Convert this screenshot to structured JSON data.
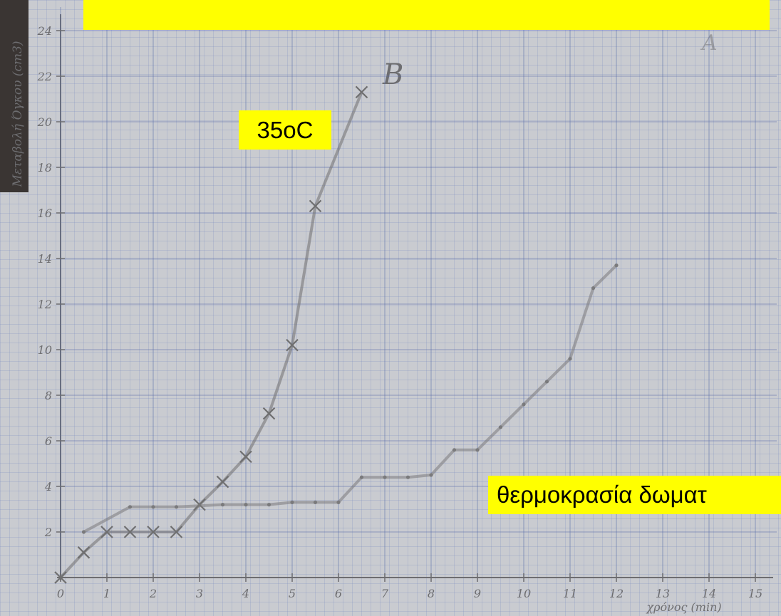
{
  "chart_data": {
    "type": "line",
    "y_label": "Μεταβολή Όγκου (cm3)",
    "x_label": "χρόνος (min)",
    "annotations": [
      "B",
      "A"
    ],
    "xlim": [
      0,
      15
    ],
    "ylim": [
      0,
      24
    ],
    "xticks": [
      0,
      1,
      2,
      3,
      4,
      5,
      6,
      7,
      8,
      9,
      10,
      11,
      12,
      13,
      14,
      15
    ],
    "yticks": [
      2,
      4,
      6,
      8,
      10,
      12,
      14,
      16,
      18,
      20,
      22,
      24
    ],
    "grid": true,
    "series": [
      {
        "name": "35oC",
        "color": "#6f6f70",
        "marker": "x",
        "x": [
          0,
          0.5,
          1,
          1.5,
          2,
          2.5,
          3,
          3.5,
          4,
          4.5,
          5,
          5.5,
          6.5
        ],
        "values": [
          0,
          1.1,
          2,
          2,
          2,
          2,
          3.2,
          4.2,
          5.3,
          7.2,
          10.2,
          16.3,
          21.3
        ]
      },
      {
        "name": "θερμοκρασία δωματ",
        "color": "#7a7a7c",
        "marker": "dot",
        "x": [
          0.5,
          1.5,
          2,
          2.5,
          3.5,
          4,
          4.5,
          5,
          5.5,
          6,
          6.5,
          7,
          7.5,
          8,
          8.5,
          9,
          9.5,
          10,
          10.5,
          11,
          11.5,
          12
        ],
        "values": [
          2,
          3.1,
          3.1,
          3.1,
          3.2,
          3.2,
          3.2,
          3.3,
          3.3,
          3.3,
          4.4,
          4.4,
          4.4,
          4.5,
          5.6,
          5.6,
          6.6,
          7.6,
          8.6,
          9.6,
          12.7,
          13.7
        ]
      }
    ]
  }
}
